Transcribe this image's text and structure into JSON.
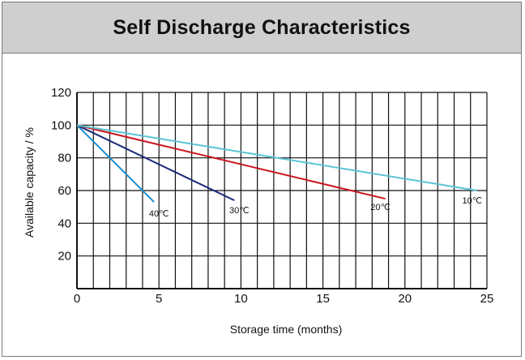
{
  "title": "Self Discharge Characteristics",
  "chart_data": {
    "type": "line",
    "title": "Self Discharge Characteristics",
    "xlabel": "Storage time (months)",
    "ylabel": "Available capacity / %",
    "xlim": [
      0,
      25
    ],
    "ylim": [
      0,
      120
    ],
    "x_ticks": [
      "0",
      "5",
      "10",
      "15",
      "20",
      "25"
    ],
    "y_ticks": [
      "20",
      "40",
      "60",
      "80",
      "100",
      "120"
    ],
    "grid": true,
    "legend": "none",
    "series": [
      {
        "name": "40℃",
        "color": "#1a8fd0",
        "x": [
          0,
          4.7
        ],
        "y": [
          100,
          53
        ]
      },
      {
        "name": "30℃",
        "color": "#1c2a7a",
        "x": [
          0,
          9.6
        ],
        "y": [
          100,
          54
        ]
      },
      {
        "name": "20℃",
        "color": "#cc1520",
        "x": [
          0,
          18.8
        ],
        "y": [
          100,
          55
        ]
      },
      {
        "name": "10℃",
        "color": "#5cc4d4",
        "x": [
          0,
          24.4
        ],
        "y": [
          100,
          60
        ]
      }
    ]
  }
}
